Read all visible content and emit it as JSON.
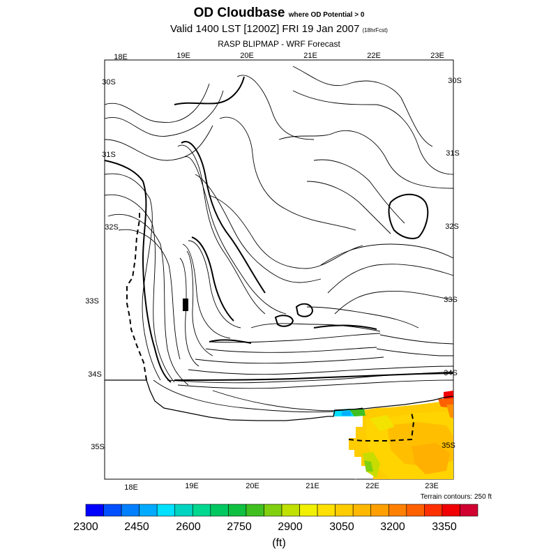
{
  "title": {
    "main": "OD Cloudbase",
    "condition": "where OD Potential > 0"
  },
  "subtitle": {
    "valid": "Valid 1400 LST [1200Z] FRI 19 Jan 2007",
    "forecast_hours": "(18hrFcst)"
  },
  "source": "RASP BLIPMAP - WRF Forecast",
  "map": {
    "lon_labels_top": [
      "18E",
      "19E",
      "20E",
      "21E",
      "22E",
      "23E"
    ],
    "lon_labels_bottom": [
      "18E",
      "19E",
      "20E",
      "21E",
      "22E",
      "23E"
    ],
    "lat_labels_left": [
      "30S",
      "31S",
      "32S",
      "33S",
      "34S",
      "35S"
    ],
    "lat_labels_right": [
      "30S",
      "31S",
      "32S",
      "33S",
      "34S",
      "35S"
    ],
    "terrain_note": "Terrain contours: 250 ft"
  },
  "colorbar": {
    "unit": "(ft)",
    "tick_labels": [
      "2300",
      "2450",
      "2600",
      "2750",
      "2900",
      "3050",
      "3200",
      "3350"
    ],
    "colors": [
      "#0000ff",
      "#0050ff",
      "#0080ff",
      "#00aaff",
      "#00e0ff",
      "#00d4c0",
      "#00d890",
      "#00c860",
      "#10c040",
      "#40c020",
      "#80d010",
      "#c0e000",
      "#f0f000",
      "#ffe000",
      "#ffcc00",
      "#ffb800",
      "#ffa000",
      "#ff8000",
      "#ff6000",
      "#ff3000",
      "#f00000",
      "#d00030"
    ]
  }
}
